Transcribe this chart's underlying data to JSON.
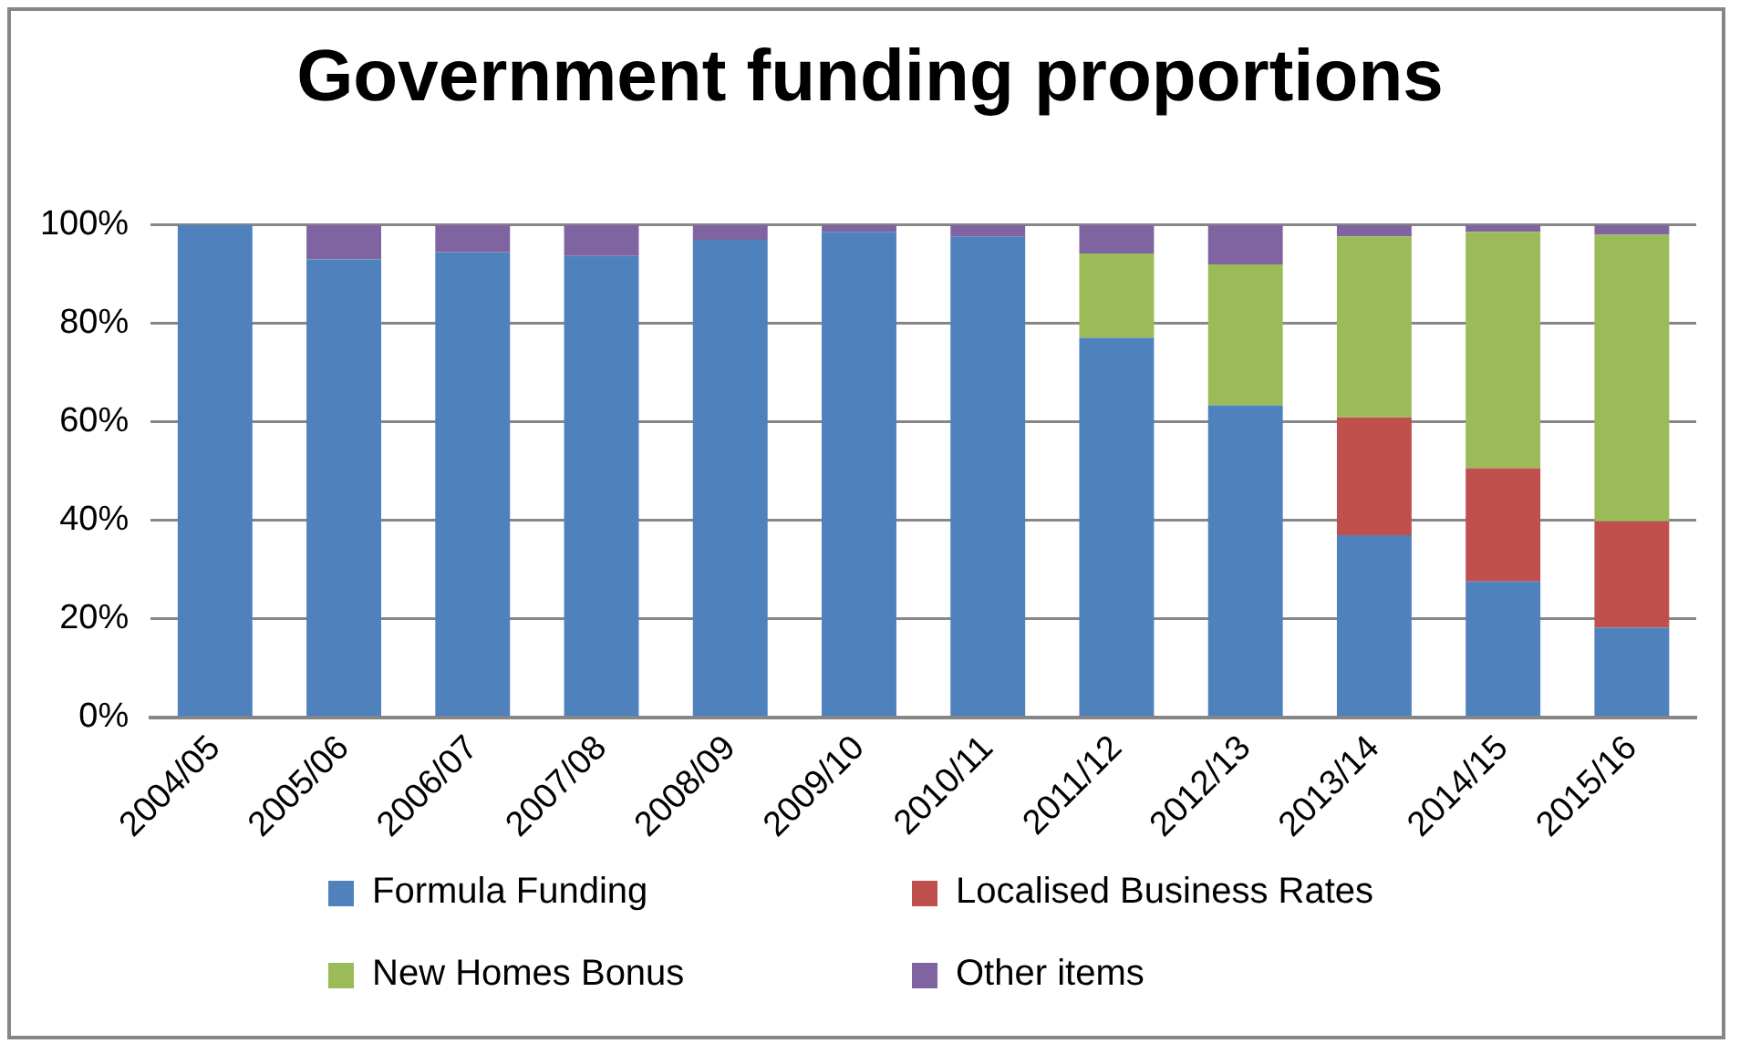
{
  "chart_data": {
    "type": "bar",
    "title": "Government funding proportions",
    "stacked": true,
    "categories": [
      "2004/05",
      "2005/06",
      "2006/07",
      "2007/08",
      "2008/09",
      "2009/10",
      "2010/11",
      "2011/12",
      "2012/13",
      "2013/14",
      "2014/15",
      "2015/16"
    ],
    "series": [
      {
        "name": "Formula Funding",
        "color": "#4f81bd",
        "values": [
          100,
          93,
          94.5,
          93.7,
          97,
          98.6,
          97.7,
          77.1,
          63.4,
          37,
          27.6,
          18.2
        ]
      },
      {
        "name": "Localised Business Rates",
        "color": "#c0504d",
        "values": [
          0,
          0,
          0,
          0,
          0,
          0,
          0,
          0,
          0,
          23.9,
          23,
          21.6
        ]
      },
      {
        "name": "New Homes Bonus",
        "color": "#9bbb59",
        "values": [
          0,
          0,
          0,
          0,
          0,
          0,
          0,
          17.1,
          28.6,
          36.8,
          48,
          58.2
        ]
      },
      {
        "name": "Other items",
        "color": "#8064a2",
        "values": [
          0,
          7,
          5.5,
          6.3,
          3,
          1.4,
          2.3,
          5.8,
          8,
          2.3,
          1.4,
          2
        ]
      }
    ],
    "ylim": [
      0,
      100
    ],
    "yticks": [
      {
        "value": 0,
        "label": "0%"
      },
      {
        "value": 20,
        "label": "20%"
      },
      {
        "value": 40,
        "label": "40%"
      },
      {
        "value": 60,
        "label": "60%"
      },
      {
        "value": 80,
        "label": "80%"
      },
      {
        "value": 100,
        "label": "100%"
      }
    ],
    "grid": "y",
    "legend": "bottom"
  }
}
